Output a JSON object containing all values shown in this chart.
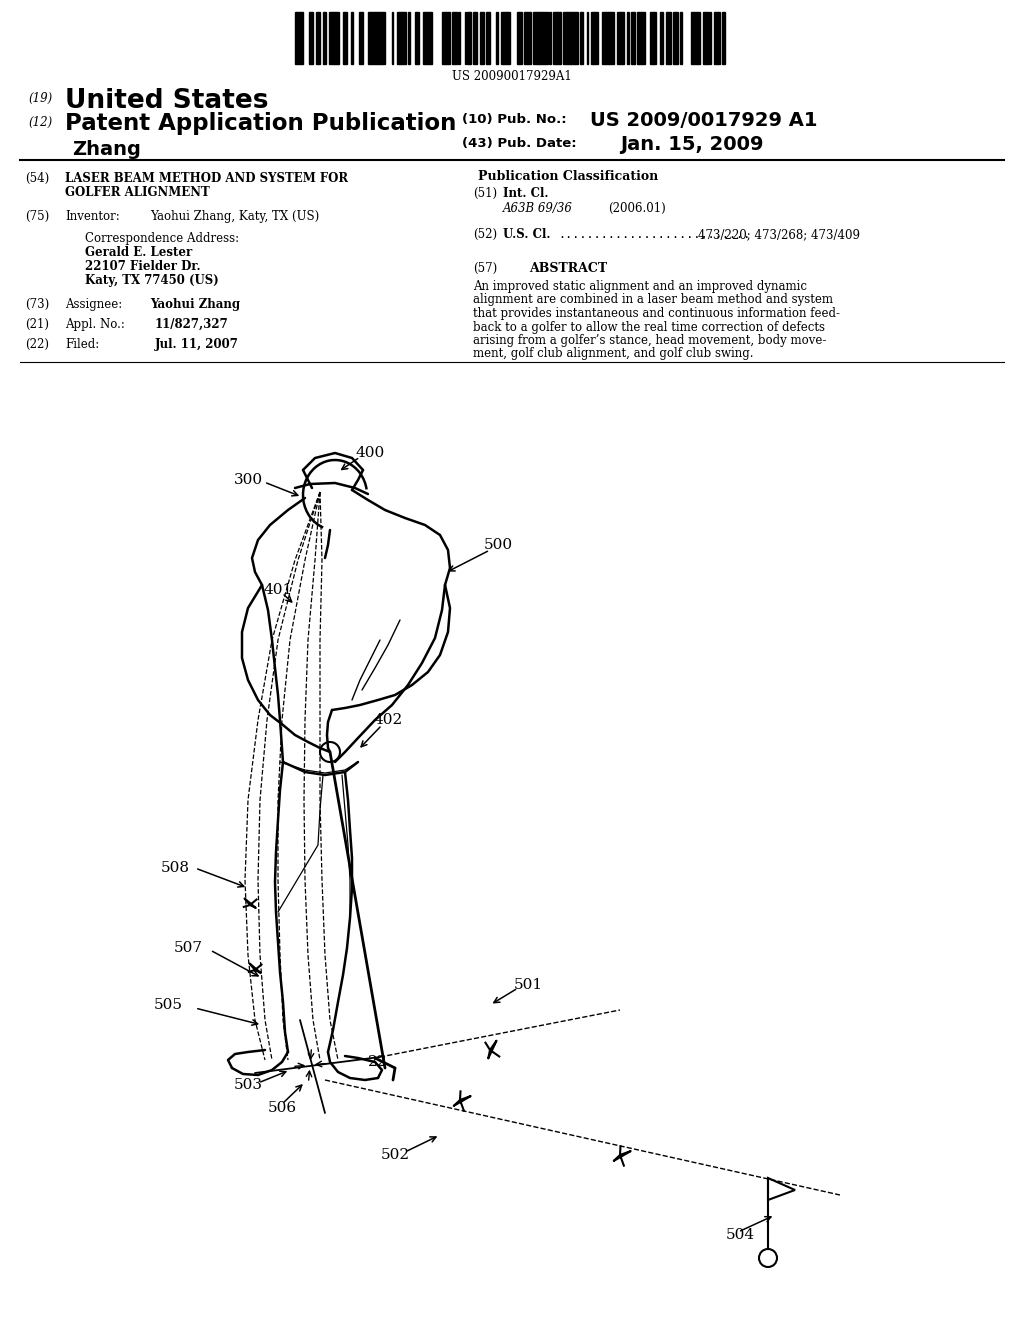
{
  "title": "US 20090017929A1",
  "barcode_text": "US 20090017929A1",
  "h1_num": "(19)",
  "h1_text": "United States",
  "h2_num": "(12)",
  "h2_text": "Patent Application Publication",
  "pub_num_label": "(10) Pub. No.:",
  "pub_num": "US 2009/0017929 A1",
  "inventor_name": "Zhang",
  "pub_date_label": "(43) Pub. Date:",
  "pub_date": "Jan. 15, 2009",
  "f54_num": "(54)",
  "f54_line1": "LASER BEAM METHOD AND SYSTEM FOR",
  "f54_line2": "GOLFER ALIGNMENT",
  "f75_num": "(75)",
  "f75_label": "Inventor:",
  "f75_val": "Yaohui Zhang, Katy, TX (US)",
  "corr_head": "Correspondence Address:",
  "corr_name": "Gerald E. Lester",
  "corr_a1": "22107 Fielder Dr.",
  "corr_a2": "Katy, TX 77450 (US)",
  "f73_num": "(73)",
  "f73_label": "Assignee:",
  "f73_val": "Yaohui Zhang",
  "f21_num": "(21)",
  "f21_label": "Appl. No.:",
  "f21_val": "11/827,327",
  "f22_num": "(22)",
  "f22_label": "Filed:",
  "f22_val": "Jul. 11, 2007",
  "pc_title": "Publication Classification",
  "f51_num": "(51)",
  "f51_label": "Int. Cl.",
  "f51_class": "A63B 69/36",
  "f51_year": "(2006.01)",
  "f52_num": "(52)",
  "f52_label": "U.S. Cl.",
  "f52_dots": "...........................",
  "f52_val": "473/220; 473/268; 473/409",
  "f57_num": "(57)",
  "f57_title": "ABSTRACT",
  "abstract_lines": [
    "An improved static alignment and an improved dynamic",
    "alignment are combined in a laser beam method and system",
    "that provides instantaneous and continuous information feed-",
    "back to a golfer to allow the real time correction of defects",
    "arising from a golfer’s stance, head movement, body move-",
    "ment, golf club alignment, and golf club swing."
  ],
  "bg": "#ffffff"
}
